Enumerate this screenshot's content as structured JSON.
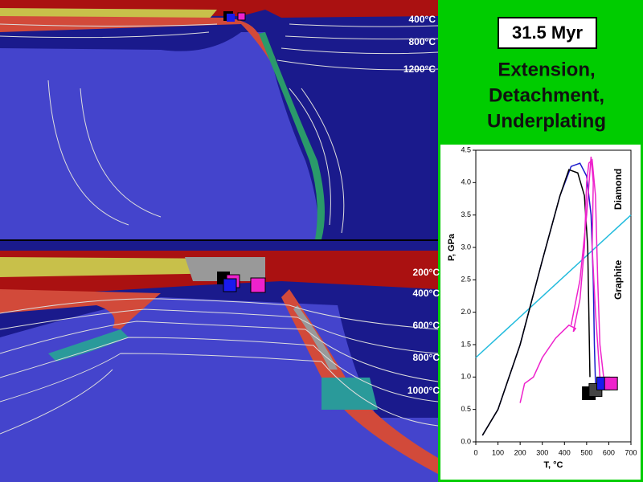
{
  "slide": {
    "time": "31.5 Myr",
    "title": [
      "Extension,",
      "Detachment,",
      "Underplating"
    ],
    "top_isotherms": [
      "400°C",
      "800°C",
      "1200°C"
    ],
    "bottom_isotherms": [
      "200°C",
      "400°C",
      "600°C",
      "800°C",
      "1000°C"
    ]
  },
  "chart_data": {
    "type": "line",
    "x_label": "T, °C",
    "y_label": "P, GPa",
    "annotations": [
      "Diamond",
      "Graphite"
    ],
    "xlim": [
      0,
      700
    ],
    "xticks": [
      0,
      100,
      200,
      300,
      400,
      500,
      600,
      700
    ],
    "ylim": [
      0,
      4.5
    ],
    "yticks": [
      {
        "value": 0,
        "label": "0.0"
      },
      {
        "value": 0.5,
        "label": "0.5"
      },
      {
        "value": 1,
        "label": "1.0"
      },
      {
        "value": 1.5,
        "label": "1.5"
      },
      {
        "value": 2,
        "label": "2.0"
      },
      {
        "value": 2.5,
        "label": "2.5"
      },
      {
        "value": 3,
        "label": "3.0"
      },
      {
        "value": 3.5,
        "label": "3.5"
      },
      {
        "value": 4,
        "label": "4.0"
      },
      {
        "value": 4.5,
        "label": "4.5"
      }
    ],
    "series": [
      {
        "style": "line",
        "color": "#22bbdd",
        "x": [
          0,
          700
        ],
        "values": [
          1.3,
          3.5
        ]
      },
      {
        "style": "line",
        "color": "#1a1acc",
        "x": [
          30,
          100,
          200,
          300,
          380,
          430,
          470,
          500,
          520,
          530,
          535,
          540
        ],
        "values": [
          0.1,
          0.5,
          1.5,
          2.8,
          3.8,
          4.25,
          4.3,
          4.1,
          3.5,
          2.5,
          1.5,
          0.9
        ]
      },
      {
        "style": "line",
        "color": "#000000",
        "x": [
          30,
          100,
          200,
          300,
          380,
          420,
          460,
          490,
          505,
          510,
          515
        ],
        "values": [
          0.1,
          0.5,
          1.5,
          2.8,
          3.8,
          4.2,
          4.15,
          3.8,
          3.0,
          2.0,
          1.0
        ]
      },
      {
        "style": "line",
        "color": "#ee22cc",
        "x": [
          200,
          220,
          260,
          300,
          360,
          420,
          450,
          440,
          470,
          490,
          500,
          510,
          525,
          540,
          550,
          560,
          580
        ],
        "values": [
          0.6,
          0.9,
          1.0,
          1.3,
          1.6,
          1.8,
          1.75,
          1.7,
          2.2,
          3.0,
          4.0,
          4.3,
          4.35,
          3.8,
          2.5,
          1.5,
          0.9
        ]
      },
      {
        "style": "line",
        "color": "#ee22cc",
        "x": [
          430,
          470,
          500,
          520,
          530,
          525,
          540,
          560,
          600
        ],
        "values": [
          1.8,
          2.5,
          3.5,
          4.4,
          4.0,
          3.0,
          2.0,
          1.0,
          0.9
        ]
      },
      {
        "style": "square",
        "color": "#000000",
        "x": [
          510
        ],
        "values": [
          0.75
        ]
      },
      {
        "style": "square",
        "color": "#444444",
        "x": [
          540
        ],
        "values": [
          0.8
        ]
      },
      {
        "style": "square",
        "color": "#1a1aee",
        "x": [
          575
        ],
        "values": [
          0.9
        ]
      },
      {
        "style": "square",
        "color": "#ee22cc",
        "x": [
          610
        ],
        "values": [
          0.9
        ]
      }
    ]
  }
}
